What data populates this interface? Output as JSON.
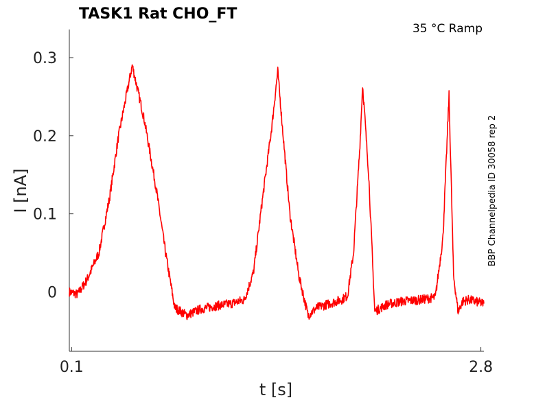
{
  "chart_data": {
    "type": "line",
    "title": "TASK1  Rat  CHO_FT",
    "annotation": "35 °C  Ramp",
    "side_label": "BBP Channelpedia ID 30058 rep 2",
    "xlabel": "t [s]",
    "ylabel": "I [nA]",
    "xlim": [
      0.085,
      2.82
    ],
    "ylim": [
      -0.076,
      0.336
    ],
    "x_ticks": [
      0.1,
      2.8
    ],
    "x_tick_labels": [
      "0.1",
      "2.8"
    ],
    "y_ticks": [
      0,
      0.1,
      0.2,
      0.3
    ],
    "y_tick_labels": [
      "0",
      "0.1",
      "0.2",
      "0.3"
    ],
    "grid": false,
    "series": [
      {
        "color": "#ff0000",
        "x": [
          0.085,
          0.14,
          0.2,
          0.28,
          0.35,
          0.41,
          0.5,
          0.58,
          0.66,
          0.72,
          0.78,
          0.86,
          0.95,
          1.05,
          1.15,
          1.24,
          1.3,
          1.36,
          1.42,
          1.46,
          1.5,
          1.54,
          1.6,
          1.66,
          1.72,
          1.8,
          1.88,
          1.92,
          1.96,
          2.0,
          2.02,
          2.06,
          2.1,
          2.18,
          2.28,
          2.4,
          2.5,
          2.55,
          2.59,
          2.62,
          2.65,
          2.68,
          2.72,
          2.78,
          2.82
        ],
        "y": [
          0.0,
          -0.003,
          0.015,
          0.05,
          0.12,
          0.2,
          0.29,
          0.22,
          0.13,
          0.05,
          -0.02,
          -0.03,
          -0.022,
          -0.018,
          -0.015,
          -0.01,
          0.025,
          0.12,
          0.21,
          0.283,
          0.19,
          0.1,
          0.02,
          -0.03,
          -0.02,
          -0.015,
          -0.01,
          -0.005,
          0.05,
          0.18,
          0.265,
          0.15,
          -0.025,
          -0.016,
          -0.012,
          -0.01,
          -0.007,
          0.07,
          0.252,
          0.02,
          -0.025,
          -0.012,
          -0.01,
          -0.013,
          -0.015
        ]
      }
    ]
  }
}
